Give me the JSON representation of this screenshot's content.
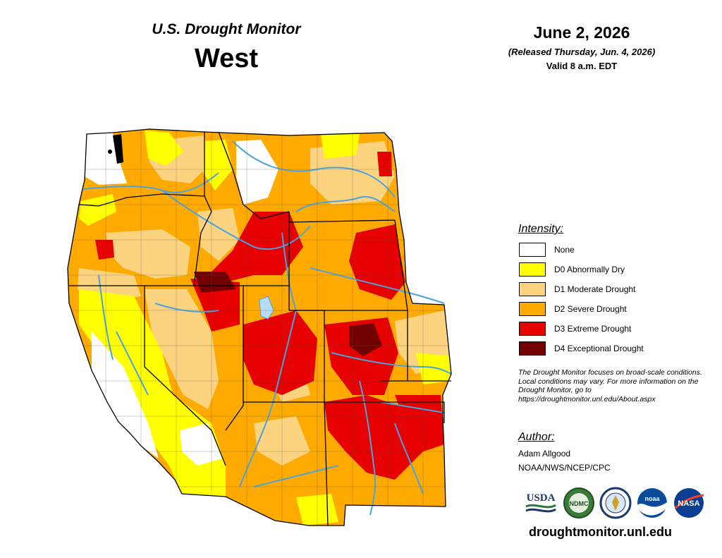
{
  "header": {
    "title": "U.S. Drought Monitor",
    "region": "West",
    "date": "June 2, 2026",
    "released": "(Released Thursday, Jun. 4, 2026)",
    "valid": "Valid 8 a.m. EDT"
  },
  "legend": {
    "title": "Intensity:",
    "items": [
      {
        "label": "None",
        "color": "#ffffff"
      },
      {
        "label": "D0 Abnormally Dry",
        "color": "#ffff00"
      },
      {
        "label": "D1 Moderate Drought",
        "color": "#fcd37f"
      },
      {
        "label": "D2 Severe Drought",
        "color": "#ffaa00"
      },
      {
        "label": "D3 Extreme Drought",
        "color": "#e60000"
      },
      {
        "label": "D4 Exceptional Drought",
        "color": "#730000"
      }
    ]
  },
  "note": "The Drought Monitor focuses on broad-scale conditions. Local conditions may vary. For more information on the Drought Monitor, go to https://droughtmonitor.unl.edu/About.aspx",
  "author": {
    "title": "Author:",
    "name": "Adam Allgood",
    "org": "NOAA/NWS/NCEP/CPC"
  },
  "logos": [
    {
      "name": "usda-logo",
      "text": "USDA"
    },
    {
      "name": "ndmc-logo",
      "text": "NDMC"
    },
    {
      "name": "doc-logo",
      "text": ""
    },
    {
      "name": "noaa-logo",
      "text": "noaa"
    },
    {
      "name": "nasa-logo",
      "text": "NASA"
    }
  ],
  "website": "droughtmonitor.unl.edu",
  "colors": {
    "none": "#ffffff",
    "d0": "#ffff00",
    "d1": "#fcd37f",
    "d2": "#ffaa00",
    "d3": "#e60000",
    "d4": "#730000",
    "river": "#4aa3df"
  }
}
